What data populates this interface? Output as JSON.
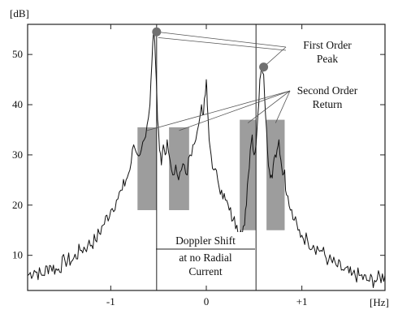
{
  "chart_data": {
    "type": "line",
    "units": {
      "x": "[Hz]",
      "y": "[dB]"
    },
    "xlim": [
      -1.87,
      1.87
    ],
    "ylim": [
      3,
      56
    ],
    "x_ticks": [
      {
        "value": -1,
        "label": "-1"
      },
      {
        "value": 0,
        "label": "0"
      },
      {
        "value": 1,
        "label": "+1"
      }
    ],
    "y_ticks": [
      {
        "value": 10,
        "label": "10"
      },
      {
        "value": 20,
        "label": "20"
      },
      {
        "value": 30,
        "label": "30"
      },
      {
        "value": 40,
        "label": "40"
      },
      {
        "value": 50,
        "label": "50"
      }
    ],
    "series": [
      {
        "x": [
          -1.87,
          -1.8,
          -1.72,
          -1.64,
          -1.56,
          -1.48,
          -1.4,
          -1.32,
          -1.24,
          -1.16,
          -1.08,
          -1.0,
          -0.94,
          -0.88,
          -0.84,
          -0.8,
          -0.76,
          -0.72,
          -0.68,
          -0.65,
          -0.62,
          -0.59,
          -0.57,
          -0.55,
          -0.53,
          -0.51,
          -0.49,
          -0.47,
          -0.45,
          -0.43,
          -0.41,
          -0.38,
          -0.35,
          -0.32,
          -0.29,
          -0.26,
          -0.23,
          -0.2,
          -0.17,
          -0.14,
          -0.11,
          -0.08,
          -0.05,
          -0.03,
          -0.01,
          0.0,
          0.01,
          0.03,
          0.05,
          0.08,
          0.12,
          0.16,
          0.2,
          0.24,
          0.28,
          0.32,
          0.36,
          0.4,
          0.42,
          0.44,
          0.46,
          0.48,
          0.5,
          0.52,
          0.54,
          0.56,
          0.58,
          0.6,
          0.62,
          0.64,
          0.66,
          0.68,
          0.7,
          0.72,
          0.74,
          0.76,
          0.78,
          0.8,
          0.82,
          0.84,
          0.88,
          0.92,
          0.96,
          1.0,
          1.06,
          1.12,
          1.2,
          1.28,
          1.36,
          1.44,
          1.52,
          1.6,
          1.68,
          1.76,
          1.87
        ],
        "y": [
          6,
          7,
          6,
          8,
          7,
          9,
          9,
          11,
          12,
          13,
          16,
          19,
          21,
          23,
          25,
          27,
          32,
          30,
          31,
          33,
          36,
          40,
          48,
          55,
          48,
          37,
          31,
          28,
          32,
          30,
          33,
          29,
          26,
          28,
          25,
          27,
          28,
          26,
          30,
          32,
          33,
          36,
          40,
          38,
          42,
          45,
          40,
          33,
          30,
          27,
          25,
          23,
          21,
          19,
          17,
          16,
          15,
          16,
          20,
          26,
          31,
          34,
          30,
          32,
          38,
          45,
          48,
          46,
          38,
          31,
          27,
          26,
          28,
          30,
          31,
          33,
          29,
          26,
          27,
          22,
          19,
          17,
          15,
          14,
          13,
          12,
          11,
          9,
          8,
          7,
          6,
          6,
          5,
          5,
          6
        ]
      }
    ],
    "vertical_lines_x": [
      -0.52,
      0.52
    ],
    "shaded_bands": [
      {
        "x": [
          -0.72,
          -0.52
        ],
        "y": [
          19,
          35.5
        ]
      },
      {
        "x": [
          -0.39,
          -0.18
        ],
        "y": [
          19,
          35.5
        ]
      },
      {
        "x": [
          0.35,
          0.52
        ],
        "y": [
          15,
          37
        ]
      },
      {
        "x": [
          0.63,
          0.82
        ],
        "y": [
          15,
          37
        ]
      }
    ],
    "peak_markers": [
      {
        "x": -0.52,
        "y": 54.5
      },
      {
        "x": 0.6,
        "y": 47.5
      }
    ],
    "annotations": {
      "first_order": [
        "First Order",
        "Peak"
      ],
      "second_order": [
        "Second Order",
        "Return"
      ],
      "doppler": [
        "Doppler Shift",
        "at no Radial",
        "Current"
      ]
    }
  }
}
